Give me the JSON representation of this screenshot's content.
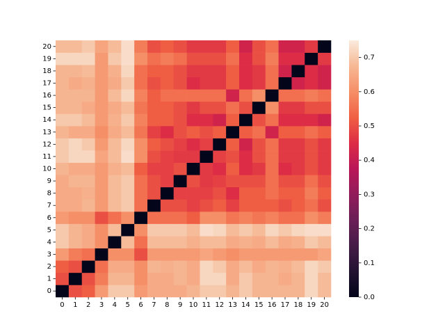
{
  "chart_data": {
    "type": "heatmap",
    "categories": [
      "0",
      "1",
      "2",
      "3",
      "4",
      "5",
      "6",
      "7",
      "8",
      "9",
      "10",
      "11",
      "12",
      "13",
      "14",
      "15",
      "16",
      "17",
      "18",
      "19",
      "20"
    ],
    "values": [
      [
        0,
        0.5,
        0.52,
        0.62,
        0.7,
        0.7,
        0.62,
        0.65,
        0.65,
        0.65,
        0.67,
        0.7,
        0.7,
        0.67,
        0.7,
        0.67,
        0.67,
        0.67,
        0.67,
        0.72,
        0.68
      ],
      [
        0.5,
        0,
        0.5,
        0.57,
        0.67,
        0.67,
        0.6,
        0.65,
        0.65,
        0.67,
        0.65,
        0.72,
        0.72,
        0.65,
        0.7,
        0.67,
        0.67,
        0.65,
        0.67,
        0.72,
        0.68
      ],
      [
        0.52,
        0.5,
        0,
        0.55,
        0.65,
        0.65,
        0.6,
        0.67,
        0.66,
        0.67,
        0.65,
        0.72,
        0.7,
        0.65,
        0.68,
        0.65,
        0.67,
        0.66,
        0.68,
        0.72,
        0.7
      ],
      [
        0.62,
        0.57,
        0.55,
        0,
        0.6,
        0.6,
        0.5,
        0.62,
        0.62,
        0.62,
        0.62,
        0.64,
        0.62,
        0.6,
        0.62,
        0.62,
        0.62,
        0.62,
        0.62,
        0.62,
        0.64
      ],
      [
        0.7,
        0.67,
        0.65,
        0.6,
        0,
        0.68,
        0.55,
        0.68,
        0.68,
        0.68,
        0.66,
        0.68,
        0.68,
        0.65,
        0.66,
        0.65,
        0.68,
        0.65,
        0.66,
        0.7,
        0.68
      ],
      [
        0.7,
        0.67,
        0.65,
        0.6,
        0.68,
        0,
        0.6,
        0.7,
        0.7,
        0.7,
        0.68,
        0.73,
        0.72,
        0.68,
        0.7,
        0.68,
        0.72,
        0.7,
        0.72,
        0.73,
        0.73
      ],
      [
        0.62,
        0.6,
        0.6,
        0.5,
        0.55,
        0.6,
        0,
        0.55,
        0.55,
        0.55,
        0.52,
        0.6,
        0.6,
        0.56,
        0.58,
        0.56,
        0.58,
        0.55,
        0.55,
        0.6,
        0.57
      ],
      [
        0.65,
        0.65,
        0.67,
        0.62,
        0.68,
        0.7,
        0.55,
        0,
        0.5,
        0.5,
        0.48,
        0.5,
        0.52,
        0.48,
        0.52,
        0.52,
        0.52,
        0.5,
        0.52,
        0.55,
        0.5
      ],
      [
        0.65,
        0.65,
        0.66,
        0.62,
        0.68,
        0.7,
        0.55,
        0.5,
        0,
        0.48,
        0.48,
        0.48,
        0.5,
        0.45,
        0.52,
        0.52,
        0.55,
        0.52,
        0.52,
        0.57,
        0.52
      ],
      [
        0.65,
        0.67,
        0.67,
        0.62,
        0.68,
        0.7,
        0.55,
        0.5,
        0.48,
        0,
        0.5,
        0.47,
        0.48,
        0.5,
        0.5,
        0.5,
        0.55,
        0.5,
        0.5,
        0.55,
        0.5
      ],
      [
        0.67,
        0.65,
        0.65,
        0.62,
        0.66,
        0.68,
        0.52,
        0.48,
        0.48,
        0.5,
        0,
        0.47,
        0.45,
        0.52,
        0.45,
        0.47,
        0.55,
        0.45,
        0.47,
        0.5,
        0.47
      ],
      [
        0.7,
        0.72,
        0.72,
        0.64,
        0.68,
        0.73,
        0.6,
        0.5,
        0.48,
        0.47,
        0.47,
        0,
        0.48,
        0.5,
        0.45,
        0.5,
        0.55,
        0.47,
        0.47,
        0.5,
        0.47
      ],
      [
        0.7,
        0.72,
        0.7,
        0.62,
        0.68,
        0.72,
        0.6,
        0.52,
        0.5,
        0.48,
        0.45,
        0.48,
        0,
        0.52,
        0.42,
        0.5,
        0.55,
        0.47,
        0.47,
        0.5,
        0.47
      ],
      [
        0.67,
        0.65,
        0.65,
        0.6,
        0.65,
        0.68,
        0.56,
        0.48,
        0.45,
        0.5,
        0.52,
        0.5,
        0.52,
        0,
        0.52,
        0.55,
        0.42,
        0.52,
        0.52,
        0.55,
        0.52
      ],
      [
        0.7,
        0.7,
        0.68,
        0.62,
        0.66,
        0.7,
        0.58,
        0.52,
        0.52,
        0.5,
        0.45,
        0.45,
        0.42,
        0.52,
        0,
        0.5,
        0.55,
        0.45,
        0.45,
        0.45,
        0.42
      ],
      [
        0.67,
        0.67,
        0.65,
        0.62,
        0.65,
        0.68,
        0.56,
        0.52,
        0.52,
        0.5,
        0.47,
        0.5,
        0.5,
        0.55,
        0.5,
        0,
        0.6,
        0.47,
        0.47,
        0.5,
        0.5
      ],
      [
        0.67,
        0.67,
        0.67,
        0.62,
        0.68,
        0.72,
        0.58,
        0.52,
        0.55,
        0.55,
        0.55,
        0.55,
        0.55,
        0.42,
        0.55,
        0.6,
        0,
        0.55,
        0.55,
        0.57,
        0.55
      ],
      [
        0.67,
        0.65,
        0.66,
        0.62,
        0.65,
        0.7,
        0.55,
        0.5,
        0.52,
        0.5,
        0.45,
        0.47,
        0.47,
        0.52,
        0.45,
        0.47,
        0.55,
        0,
        0.42,
        0.45,
        0.42
      ],
      [
        0.67,
        0.67,
        0.68,
        0.62,
        0.66,
        0.72,
        0.55,
        0.52,
        0.52,
        0.5,
        0.47,
        0.47,
        0.47,
        0.52,
        0.45,
        0.47,
        0.55,
        0.42,
        0,
        0.45,
        0.42
      ],
      [
        0.72,
        0.72,
        0.72,
        0.62,
        0.7,
        0.73,
        0.6,
        0.55,
        0.57,
        0.55,
        0.5,
        0.5,
        0.5,
        0.55,
        0.45,
        0.5,
        0.57,
        0.45,
        0.45,
        0,
        0.47
      ],
      [
        0.68,
        0.68,
        0.7,
        0.64,
        0.68,
        0.73,
        0.57,
        0.5,
        0.52,
        0.5,
        0.47,
        0.47,
        0.47,
        0.52,
        0.42,
        0.5,
        0.55,
        0.42,
        0.42,
        0.47,
        0
      ]
    ],
    "colormap": "rocket",
    "vlim": [
      0,
      0.75
    ],
    "colorbar_ticks": [
      {
        "value": 0,
        "label": "0.0"
      },
      {
        "value": 0.1,
        "label": "0.1"
      },
      {
        "value": 0.2,
        "label": "0.2"
      },
      {
        "value": 0.3,
        "label": "0.3"
      },
      {
        "value": 0.4,
        "label": "0.4"
      },
      {
        "value": 0.5,
        "label": "0.5"
      },
      {
        "value": 0.6,
        "label": "0.6"
      },
      {
        "value": 0.7,
        "label": "0.7"
      }
    ]
  }
}
